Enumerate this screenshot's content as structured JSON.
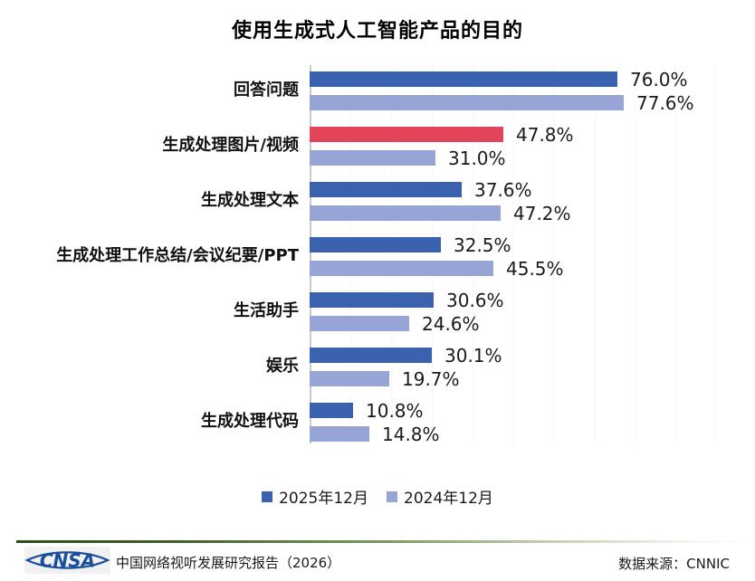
{
  "title": "使用生成式人工智能产品的目的",
  "chart_data": {
    "type": "bar",
    "orientation": "horizontal",
    "title": "使用生成式人工智能产品的目的",
    "categories": [
      "回答问题",
      "生成处理图片/视频",
      "生成处理文本",
      "生成处理工作总结/会议纪要/PPT",
      "生活助手",
      "娱乐",
      "生成处理代码"
    ],
    "series": [
      {
        "name": "2025年12月",
        "color": "#3B62AE",
        "values": [
          76.0,
          47.8,
          37.6,
          32.5,
          30.6,
          30.1,
          10.8
        ]
      },
      {
        "name": "2024年12月",
        "color": "#96A5D6",
        "values": [
          77.6,
          31.0,
          47.2,
          45.5,
          24.6,
          19.7,
          14.8
        ]
      }
    ],
    "highlight": {
      "category_index": 1,
      "series_index": 0,
      "color": "#E2455A"
    },
    "value_label_format": "{value}%",
    "xlim": [
      0,
      80
    ],
    "axis_color": "#C9C9C9",
    "grid": "faint-vertical",
    "legend_position": "bottom"
  },
  "legend": {
    "items": [
      {
        "label": "2025年12月",
        "color": "#3B62AE"
      },
      {
        "label": "2024年12月",
        "color": "#96A5D6"
      }
    ]
  },
  "footer": {
    "logo_text": "CNSA",
    "logo_color": "#1B4E9B",
    "report_title": "中国网络视听发展研究报告（2026）",
    "data_source": "数据来源：CNNIC"
  }
}
